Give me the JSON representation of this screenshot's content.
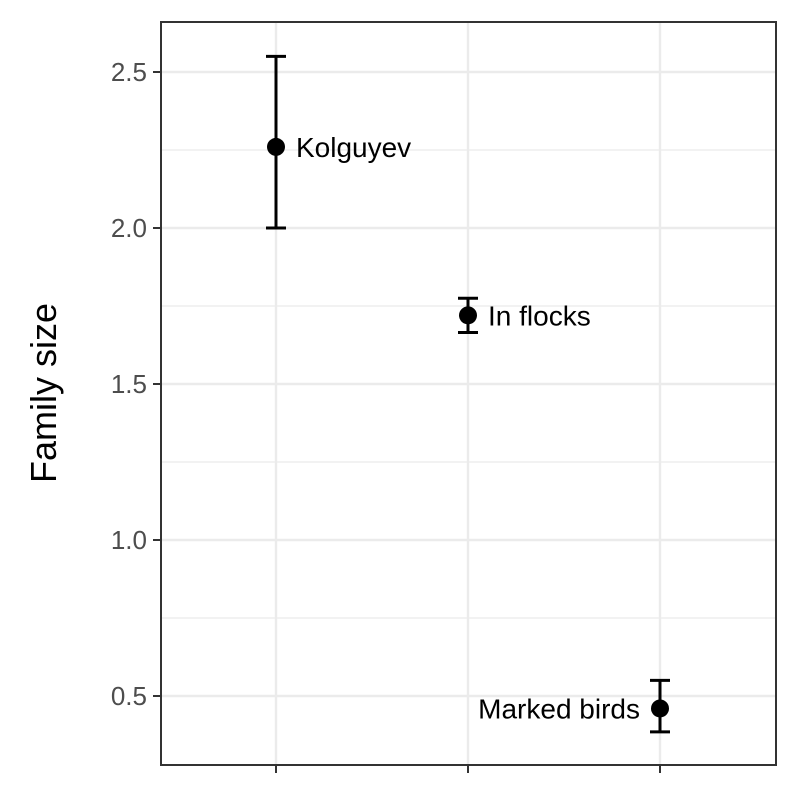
{
  "chart_data": {
    "type": "scatter",
    "title": "",
    "xlabel": "",
    "ylabel": "Family size",
    "ylim": [
      0.28,
      2.65
    ],
    "yticks": [
      0.5,
      1.0,
      1.5,
      2.0,
      2.5
    ],
    "ytick_labels": [
      "0.5",
      "1.0",
      "1.5",
      "2.0",
      "2.5"
    ],
    "grid": true,
    "legend": "none",
    "colors": {
      "point": "#000000",
      "grid": "#ebebeb",
      "panel_border": "#333333",
      "tick_text": "#4d4d4d"
    },
    "points": [
      {
        "label": "Kolguyev",
        "x": 1,
        "y": 2.26,
        "ymin": 2.0,
        "ymax": 2.55,
        "label_side": "right"
      },
      {
        "label": "In flocks",
        "x": 2,
        "y": 1.72,
        "ymin": 1.665,
        "ymax": 1.775,
        "label_side": "right"
      },
      {
        "label": "Marked birds",
        "x": 3,
        "y": 0.46,
        "ymin": 0.385,
        "ymax": 0.55,
        "label_side": "left"
      }
    ]
  }
}
